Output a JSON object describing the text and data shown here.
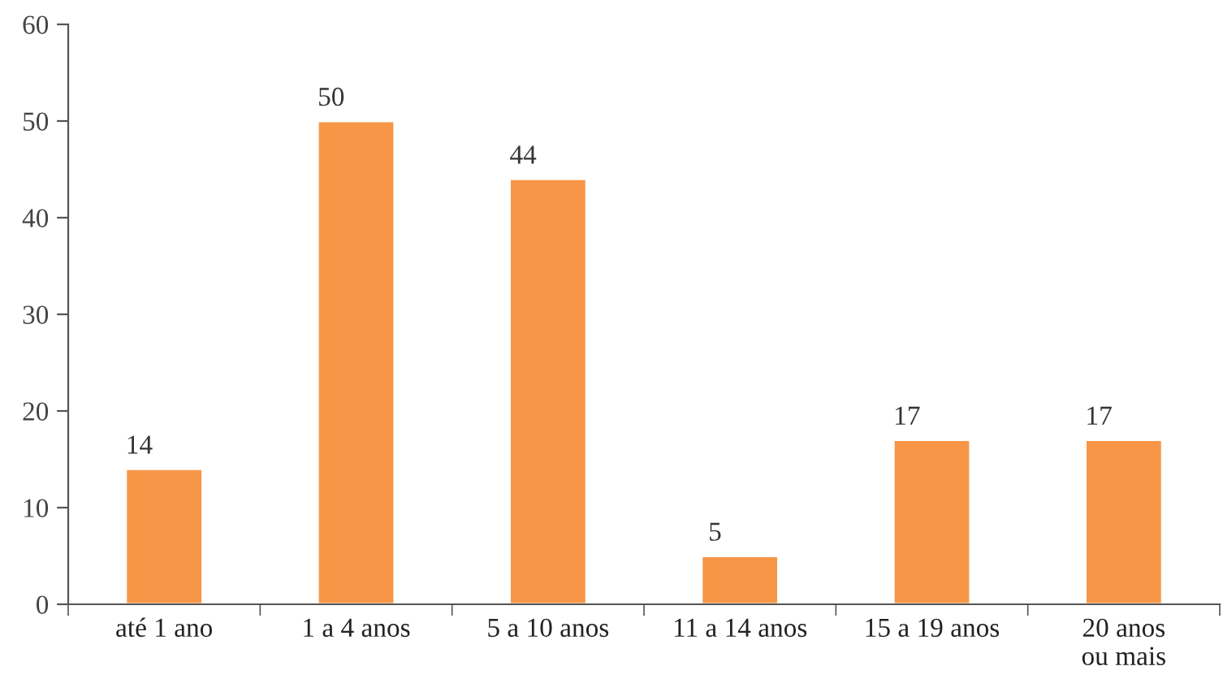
{
  "chart_data": {
    "type": "bar",
    "categories": [
      "até 1 ano",
      "1 a 4 anos",
      "5 a 10 anos",
      "11 a 14 anos",
      "15 a 19 anos",
      "20 anos\nou mais"
    ],
    "values": [
      14,
      50,
      44,
      5,
      17,
      17
    ],
    "color": "#f79646",
    "ylim": [
      0,
      60
    ],
    "yticks": [
      0,
      10,
      20,
      30,
      40,
      50,
      60
    ],
    "data_labels": true,
    "grid": false,
    "legend": false
  }
}
